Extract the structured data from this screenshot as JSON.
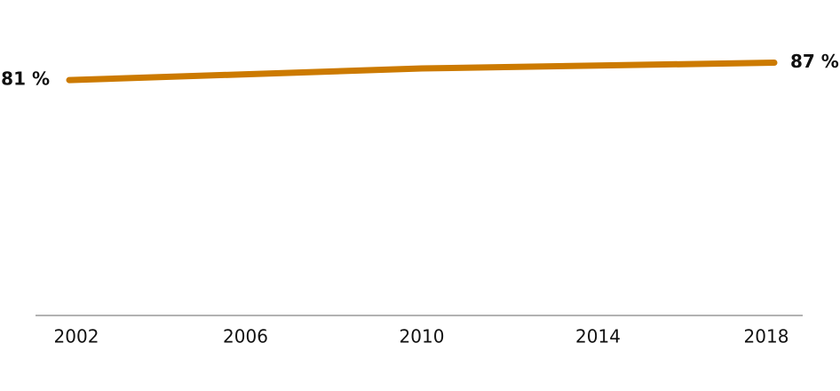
{
  "chart_data": {
    "type": "line",
    "x": [
      2002,
      2006,
      2010,
      2014,
      2018
    ],
    "series": [
      {
        "color": "#cc7a00",
        "values": [
          81,
          83,
          85,
          86,
          87
        ],
        "value_labels": [
          "81 %",
          null,
          null,
          null,
          "87 %"
        ]
      }
    ],
    "xlim": [
      2002,
      2018
    ],
    "xticks": [
      2002,
      2006,
      2010,
      2014,
      2018
    ],
    "ylim": [
      0,
      100
    ]
  }
}
